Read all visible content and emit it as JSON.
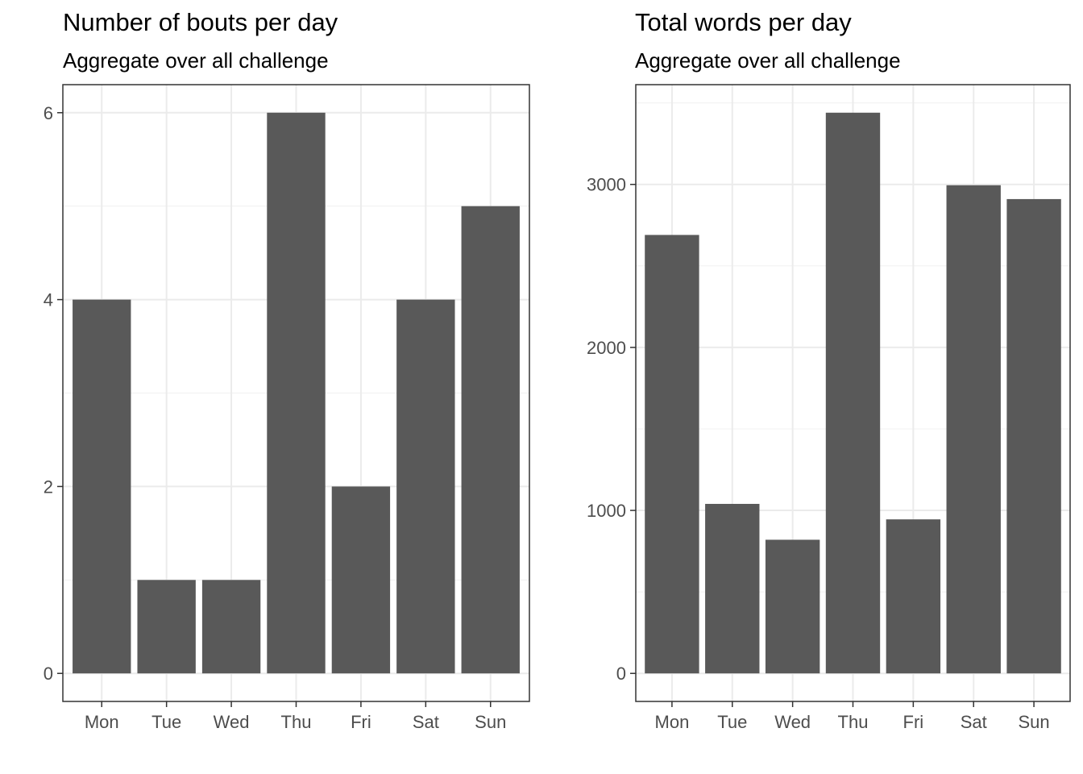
{
  "chart_data": [
    {
      "type": "bar",
      "title": "Number of bouts per day",
      "subtitle": "Aggregate over all challenge",
      "xlabel": "",
      "ylabel": "",
      "categories": [
        "Mon",
        "Tue",
        "Wed",
        "Thu",
        "Fri",
        "Sat",
        "Sun"
      ],
      "values": [
        4,
        1,
        1,
        6,
        2,
        4,
        5
      ],
      "ylim": [
        -0.3,
        6.3
      ],
      "yticks": [
        0,
        2,
        4,
        6
      ],
      "grid": true,
      "bar_color": "#595959"
    },
    {
      "type": "bar",
      "title": "Total words per day",
      "subtitle": "Aggregate over all challenge",
      "xlabel": "",
      "ylabel": "",
      "categories": [
        "Mon",
        "Tue",
        "Wed",
        "Thu",
        "Fri",
        "Sat",
        "Sun"
      ],
      "values": [
        2690,
        1040,
        820,
        3440,
        945,
        2995,
        2910
      ],
      "ylim": [
        -172,
        3612
      ],
      "yticks": [
        0,
        1000,
        2000,
        3000
      ],
      "grid": true,
      "bar_color": "#595959"
    }
  ]
}
